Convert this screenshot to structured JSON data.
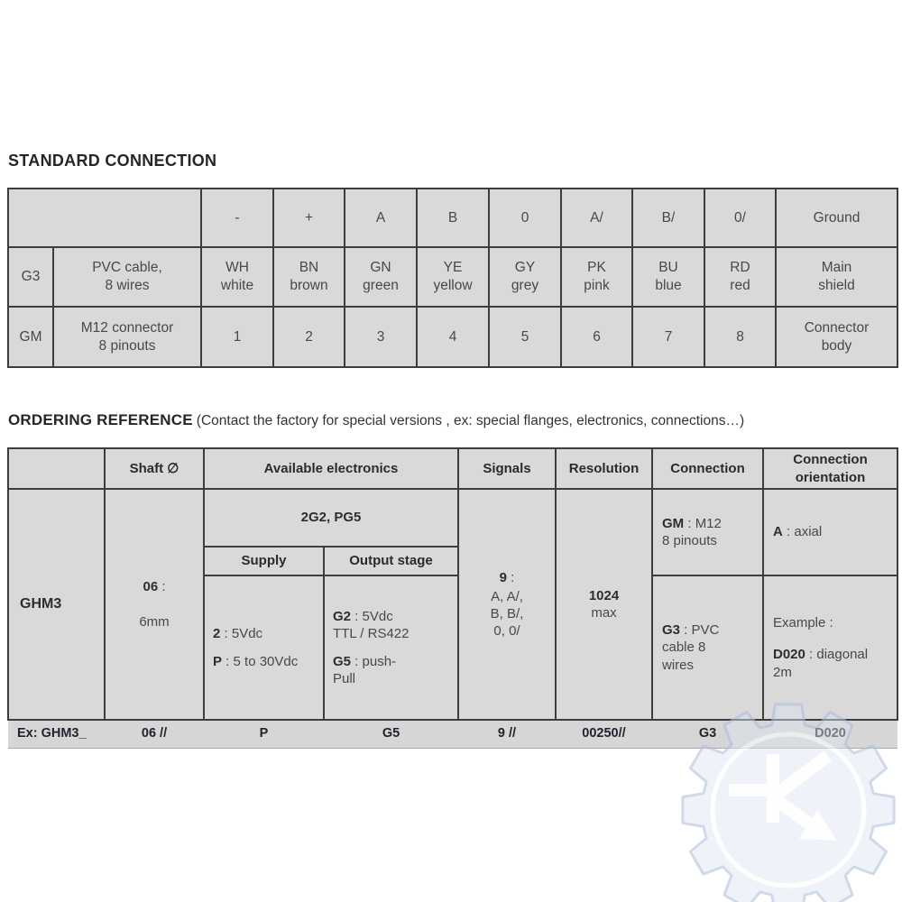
{
  "titles": {
    "standard": "STANDARD CONNECTION",
    "ordering": "ORDERING REFERENCE",
    "ordering_note": "(Contact the factory for special versions , ex: special flanges, electronics, connections…)"
  },
  "standard_table": {
    "signal_headers": [
      "-",
      "+",
      "A",
      "B",
      "0",
      "A/",
      "B/",
      "0/",
      "Ground"
    ],
    "rows": [
      {
        "code": "G3",
        "desc": "PVC cable,\n8 wires",
        "values": [
          "WH\nwhite",
          "BN\nbrown",
          "GN\ngreen",
          "YE\nyellow",
          "GY\ngrey",
          "PK\npink",
          "BU\nblue",
          "RD\nred",
          "Main\nshield"
        ]
      },
      {
        "code": "GM",
        "desc": "M12 connector\n8 pinouts",
        "values": [
          "1",
          "2",
          "3",
          "4",
          "5",
          "6",
          "7",
          "8",
          "Connector\nbody"
        ]
      }
    ]
  },
  "ordering_table": {
    "sep": " : ",
    "headers": {
      "shaft": "Shaft ∅",
      "electronics": "Available electronics",
      "signals": "Signals",
      "resolution": "Resolution",
      "connection": "Connection",
      "orientation": "Connection\norientation"
    },
    "product": "GHM3",
    "shaft": {
      "code": "06",
      "label": "6mm"
    },
    "electronics_group": "2G2, PG5",
    "supply": {
      "header": "Supply",
      "options": [
        {
          "code": "2",
          "desc": "5Vdc"
        },
        {
          "code": "P",
          "desc": "5 to 30Vdc"
        }
      ]
    },
    "output": {
      "header": "Output stage",
      "options": [
        {
          "code": "G2",
          "desc": "5Vdc\nTTL / RS422"
        },
        {
          "code": "G5",
          "desc": "push-\nPull"
        }
      ]
    },
    "signals": {
      "code": "9",
      "lines": "A, A/,\nB, B/,\n0, 0/"
    },
    "resolution": {
      "value": "1024",
      "unit": "max"
    },
    "connection": {
      "options": [
        {
          "code": "GM",
          "desc": "M12\n8 pinouts"
        },
        {
          "code": "G3",
          "desc": "PVC\ncable 8\nwires"
        }
      ]
    },
    "orientation": {
      "axial": {
        "code": "A",
        "desc": "axial"
      },
      "example": {
        "intro": "Example :",
        "code": "D020",
        "desc": "diagonal\n2m"
      }
    },
    "example_row": [
      "Ex: GHM3_",
      "06  //",
      "P",
      "G5",
      "9  //",
      "00250//",
      "G3",
      "D020"
    ]
  },
  "watermark": {
    "icon": "gear-k-arrow-logo",
    "color": "#b3c2de"
  },
  "colors": {
    "cell_bg": "#d9d9d9",
    "border": "#3d3d3d",
    "example_text": "#20242e"
  }
}
